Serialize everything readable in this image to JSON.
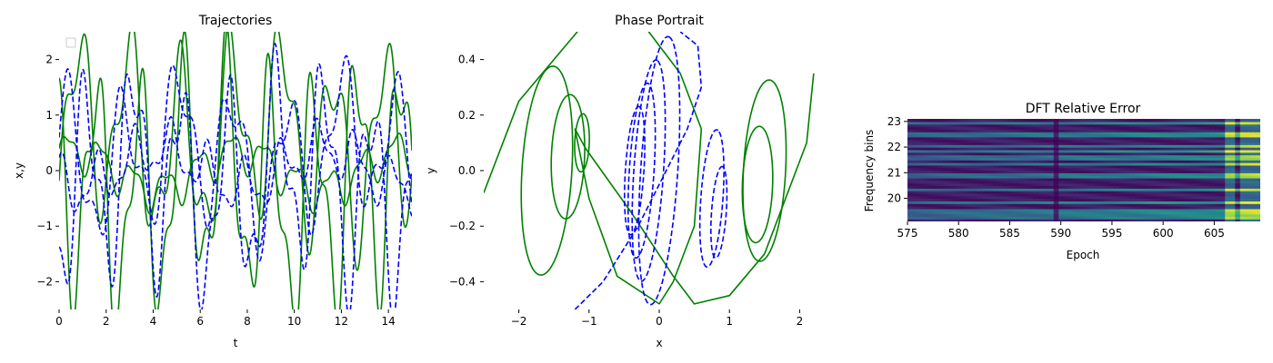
{
  "chart_data": [
    {
      "type": "line",
      "title": "Trajectories",
      "xlabel": "t",
      "ylabel": "x,y",
      "xlim": [
        0,
        15
      ],
      "ylim": [
        -2.5,
        2.5
      ],
      "xticks": [
        0,
        2,
        4,
        6,
        8,
        10,
        12,
        14
      ],
      "yticks": [
        -2,
        -1,
        0,
        1,
        2
      ],
      "xtick_labels": [
        "0",
        "2",
        "4",
        "6",
        "8",
        "10",
        "12",
        "14"
      ],
      "ytick_labels": [
        "−2",
        "−1",
        "0",
        "1",
        "2"
      ],
      "legend": "top-left, empty",
      "grid": false,
      "series": [
        {
          "color": "#008000",
          "style": "solid",
          "t_start": 0,
          "t_end": 15,
          "a1": 1.45,
          "w1": 2.9,
          "p1": -0.8,
          "a2": 0.65,
          "w2": 6.3,
          "p2": 0.4,
          "offset": 0.6
        },
        {
          "color": "#008000",
          "style": "solid",
          "t_start": 0,
          "t_end": 15,
          "a1": 0.32,
          "w1": 4.5,
          "p1": 0.0,
          "a2": 0.12,
          "w2": 9.1,
          "p2": 1.0,
          "offset": 0.0
        },
        {
          "color": "#008000",
          "style": "solid",
          "t_start": 0,
          "t_end": 15,
          "a1": 1.9,
          "w1": 3.4,
          "p1": 2.5,
          "a2": 0.8,
          "w2": 7.2,
          "p2": 0.7,
          "offset": -0.3
        },
        {
          "color": "#0000ff",
          "style": "dashed",
          "t_start": 0,
          "t_end": 15,
          "a1": 1.1,
          "w1": 2.7,
          "p1": 0.5,
          "a2": 0.5,
          "w2": 5.8,
          "p2": -0.6,
          "offset": 0.3
        },
        {
          "color": "#0000ff",
          "style": "dashed",
          "t_start": 0,
          "t_end": 15,
          "a1": 0.42,
          "w1": 4.0,
          "p1": 1.4,
          "a2": 0.18,
          "w2": 8.2,
          "p2": 0.2,
          "offset": 0.05
        },
        {
          "color": "#0000ff",
          "style": "dashed",
          "t_start": 0,
          "t_end": 15,
          "a1": 1.6,
          "w1": 3.1,
          "p1": -1.9,
          "a2": 0.7,
          "w2": 6.9,
          "p2": 1.3,
          "offset": -0.2
        }
      ]
    },
    {
      "type": "line",
      "title": "Phase Portrait",
      "xlabel": "x",
      "ylabel": "y",
      "xlim": [
        -2.5,
        2.5
      ],
      "ylim": [
        -0.5,
        0.5
      ],
      "xticks": [
        -2,
        -1,
        0,
        1,
        2
      ],
      "yticks": [
        -0.4,
        -0.2,
        0.0,
        0.2,
        0.4
      ],
      "xtick_labels": [
        "−2",
        "−1",
        "0",
        "1",
        "2"
      ],
      "ytick_labels": [
        "−0.4",
        "−0.2",
        "0.0",
        "0.2",
        "0.4"
      ],
      "grid": false,
      "series": [
        {
          "color": "#008000",
          "style": "solid",
          "kind": "loop",
          "cx": -1.6,
          "cy": 0.0,
          "rx": 0.95,
          "ry": 0.42,
          "angle": 58,
          "turns": 1.0
        },
        {
          "color": "#008000",
          "style": "solid",
          "kind": "loop",
          "cx": -1.3,
          "cy": 0.05,
          "rx": 0.55,
          "ry": 0.28,
          "angle": 60,
          "turns": 1.0
        },
        {
          "color": "#008000",
          "style": "solid",
          "kind": "loop",
          "cx": -1.1,
          "cy": 0.1,
          "rx": 0.25,
          "ry": 0.12,
          "angle": 65,
          "turns": 1.0
        },
        {
          "color": "#008000",
          "style": "solid",
          "kind": "loop",
          "cx": 1.5,
          "cy": 0.0,
          "rx": 0.8,
          "ry": 0.35,
          "angle": 62,
          "turns": 1.0
        },
        {
          "color": "#008000",
          "style": "solid",
          "kind": "loop",
          "cx": 1.4,
          "cy": -0.05,
          "rx": 0.5,
          "ry": 0.25,
          "angle": 65,
          "turns": 1.0
        },
        {
          "color": "#008000",
          "style": "solid",
          "kind": "path",
          "points": [
            [
              -2.5,
              -0.08
            ],
            [
              -2.0,
              0.25
            ],
            [
              -1.0,
              0.55
            ],
            [
              -0.3,
              0.55
            ],
            [
              0.3,
              0.35
            ],
            [
              0.6,
              0.15
            ],
            [
              0.5,
              -0.2
            ],
            [
              0.2,
              -0.4
            ],
            [
              0.0,
              -0.48
            ],
            [
              -0.6,
              -0.38
            ],
            [
              -1.0,
              -0.1
            ],
            [
              -1.2,
              0.15
            ],
            [
              -1.05,
              0.08
            ],
            [
              -0.4,
              -0.15
            ],
            [
              0.2,
              -0.38
            ],
            [
              0.5,
              -0.48
            ],
            [
              1.0,
              -0.45
            ],
            [
              1.5,
              -0.3
            ],
            [
              2.1,
              0.1
            ],
            [
              2.2,
              0.35
            ]
          ]
        },
        {
          "color": "#0000ff",
          "style": "dashed",
          "kind": "loop",
          "cx": 0.0,
          "cy": 0.0,
          "rx": 1.15,
          "ry": 0.3,
          "angle": 68,
          "turns": 1.0
        },
        {
          "color": "#0000ff",
          "style": "dashed",
          "kind": "loop",
          "cx": -0.15,
          "cy": 0.0,
          "rx": 0.95,
          "ry": 0.24,
          "angle": 68,
          "turns": 1.0
        },
        {
          "color": "#0000ff",
          "style": "dashed",
          "kind": "loop",
          "cx": -0.25,
          "cy": 0.0,
          "rx": 0.75,
          "ry": 0.2,
          "angle": 68,
          "turns": 1.0
        },
        {
          "color": "#0000ff",
          "style": "dashed",
          "kind": "loop",
          "cx": -0.35,
          "cy": 0.0,
          "rx": 0.55,
          "ry": 0.15,
          "angle": 68,
          "turns": 1.0
        },
        {
          "color": "#0000ff",
          "style": "dashed",
          "kind": "loop",
          "cx": 0.75,
          "cy": -0.1,
          "rx": 0.6,
          "ry": 0.18,
          "angle": 65,
          "turns": 1.0
        },
        {
          "color": "#0000ff",
          "style": "dashed",
          "kind": "loop",
          "cx": 0.85,
          "cy": -0.15,
          "rx": 0.4,
          "ry": 0.12,
          "angle": 65,
          "turns": 1.0
        },
        {
          "color": "#0000ff",
          "style": "dashed",
          "kind": "path",
          "points": [
            [
              -1.2,
              -0.5
            ],
            [
              -0.8,
              -0.4
            ],
            [
              -0.3,
              -0.2
            ],
            [
              0.1,
              0.0
            ],
            [
              0.4,
              0.15
            ],
            [
              0.6,
              0.3
            ],
            [
              0.55,
              0.45
            ],
            [
              0.3,
              0.5
            ]
          ]
        }
      ]
    },
    {
      "type": "heatmap",
      "title": "DFT Relative Error",
      "xlabel": "Epoch",
      "ylabel": "Frequency bins",
      "xlim": [
        575,
        609.5
      ],
      "ylim": [
        19.1,
        23.1
      ],
      "xticks": [
        575,
        580,
        585,
        590,
        595,
        600,
        605
      ],
      "yticks": [
        20,
        21,
        22,
        23
      ],
      "xtick_labels": [
        "575",
        "580",
        "585",
        "590",
        "595",
        "600",
        "605"
      ],
      "ytick_labels": [
        "20",
        "21",
        "22",
        "23"
      ],
      "colormap": "viridis",
      "bright_rows": [
        22.95,
        22.5,
        22.05,
        21.85,
        21.6,
        21.35,
        20.9,
        20.35,
        19.85,
        19.5,
        19.3
      ],
      "dark_column_epoch": 589.5,
      "bright_column_epochs": [
        606.5,
        608.0,
        609.0
      ]
    }
  ]
}
